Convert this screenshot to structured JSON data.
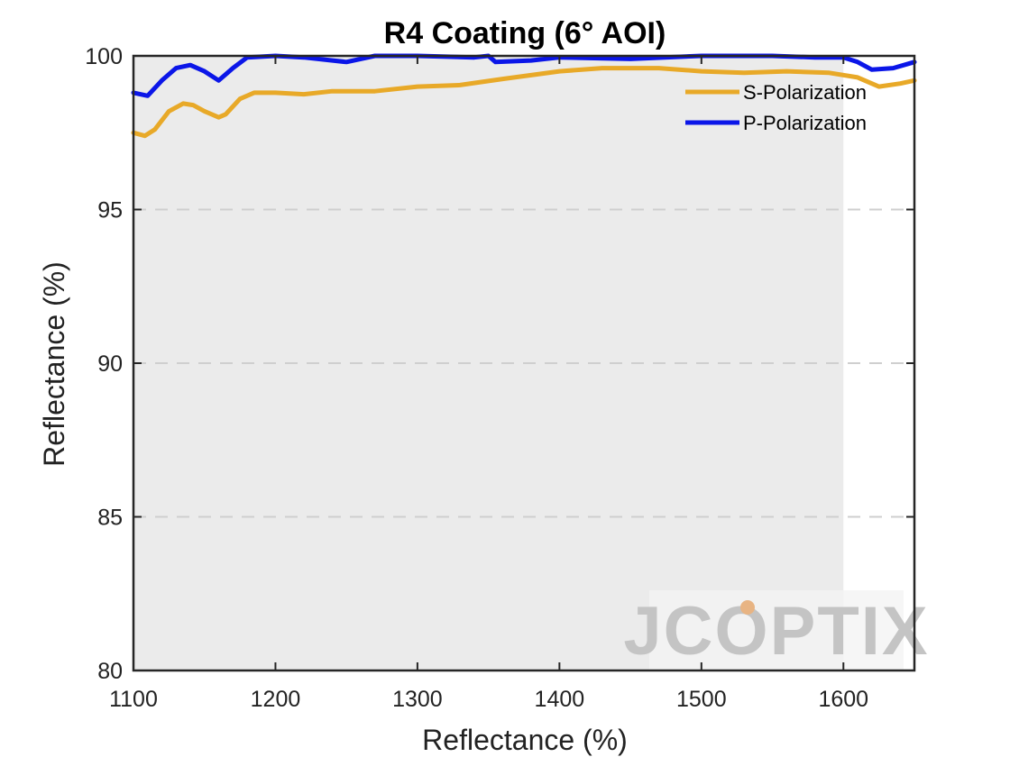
{
  "chart_data": {
    "type": "line",
    "title": "R4 Coating  (6° AOI)",
    "xlabel": "Reflectance (%)",
    "ylabel": "Reflectance (%)",
    "xlim": [
      1100,
      1650
    ],
    "ylim": [
      80,
      100
    ],
    "xticks": [
      "1100",
      "1200",
      "1300",
      "1400",
      "1500",
      "1600"
    ],
    "yticks": [
      "80",
      "85",
      "90",
      "95",
      "100"
    ],
    "grid": "horizontal dashed",
    "legend_position": "top-right",
    "highlight_band": [
      1100,
      1600
    ],
    "series": [
      {
        "name": "S-Polarization",
        "color": "#e8a928",
        "x": [
          1100,
          1108,
          1115,
          1125,
          1135,
          1142,
          1150,
          1160,
          1165,
          1175,
          1185,
          1200,
          1220,
          1240,
          1270,
          1300,
          1330,
          1360,
          1400,
          1430,
          1470,
          1500,
          1530,
          1560,
          1590,
          1610,
          1625,
          1640,
          1650
        ],
        "y": [
          97.5,
          97.4,
          97.6,
          98.2,
          98.45,
          98.4,
          98.2,
          98.0,
          98.1,
          98.6,
          98.8,
          98.8,
          98.75,
          98.85,
          98.85,
          99.0,
          99.05,
          99.25,
          99.5,
          99.6,
          99.6,
          99.5,
          99.45,
          99.5,
          99.45,
          99.3,
          99.0,
          99.1,
          99.2
        ]
      },
      {
        "name": "P-Polarization",
        "color": "#0b16e8",
        "x": [
          1100,
          1110,
          1120,
          1130,
          1140,
          1150,
          1160,
          1170,
          1180,
          1200,
          1220,
          1250,
          1270,
          1300,
          1340,
          1350,
          1355,
          1380,
          1400,
          1450,
          1500,
          1550,
          1580,
          1600,
          1610,
          1620,
          1635,
          1650
        ],
        "y": [
          98.8,
          98.7,
          99.2,
          99.6,
          99.7,
          99.5,
          99.2,
          99.6,
          99.95,
          100,
          99.95,
          99.8,
          100,
          100,
          99.95,
          100,
          99.8,
          99.85,
          99.95,
          99.9,
          100,
          100,
          99.95,
          99.95,
          99.8,
          99.55,
          99.6,
          99.8
        ]
      }
    ]
  },
  "watermark": {
    "text": "JCOPTIX",
    "accent_color": "#e8b483"
  }
}
